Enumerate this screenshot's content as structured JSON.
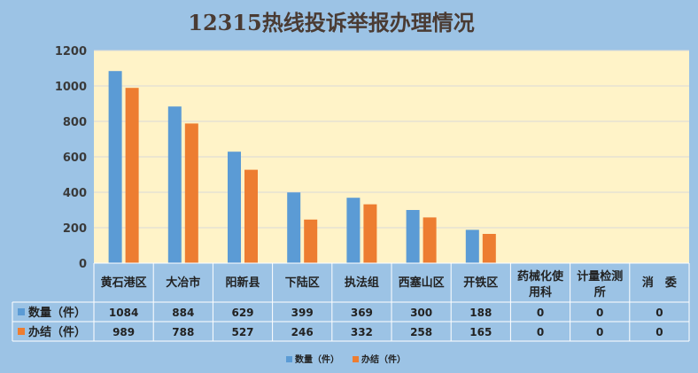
{
  "chart_data": {
    "type": "bar",
    "title": "12315热线投诉举报办理情况",
    "categories": [
      "黄石港区",
      "大冶市",
      "阳新县",
      "下陆区",
      "执法组",
      "西塞山区",
      "开铁区",
      "药械化使用科",
      "计量检测所",
      "消　委"
    ],
    "series": [
      {
        "name": "数量（件）",
        "values": [
          1084,
          884,
          629,
          399,
          369,
          300,
          188,
          0,
          0,
          0
        ],
        "color": "#5b9bd5"
      },
      {
        "name": "办结（件）",
        "values": [
          989,
          788,
          527,
          246,
          332,
          258,
          165,
          0,
          0,
          0
        ],
        "color": "#ed7d31"
      }
    ],
    "ylim": [
      0,
      1200
    ],
    "yticks": [
      0,
      200,
      400,
      600,
      800,
      1000,
      1200
    ],
    "grid": true,
    "legend": "bottom",
    "data_table": true,
    "plot_background": "#fff3c8",
    "figure_background": "#9cc3e5"
  }
}
